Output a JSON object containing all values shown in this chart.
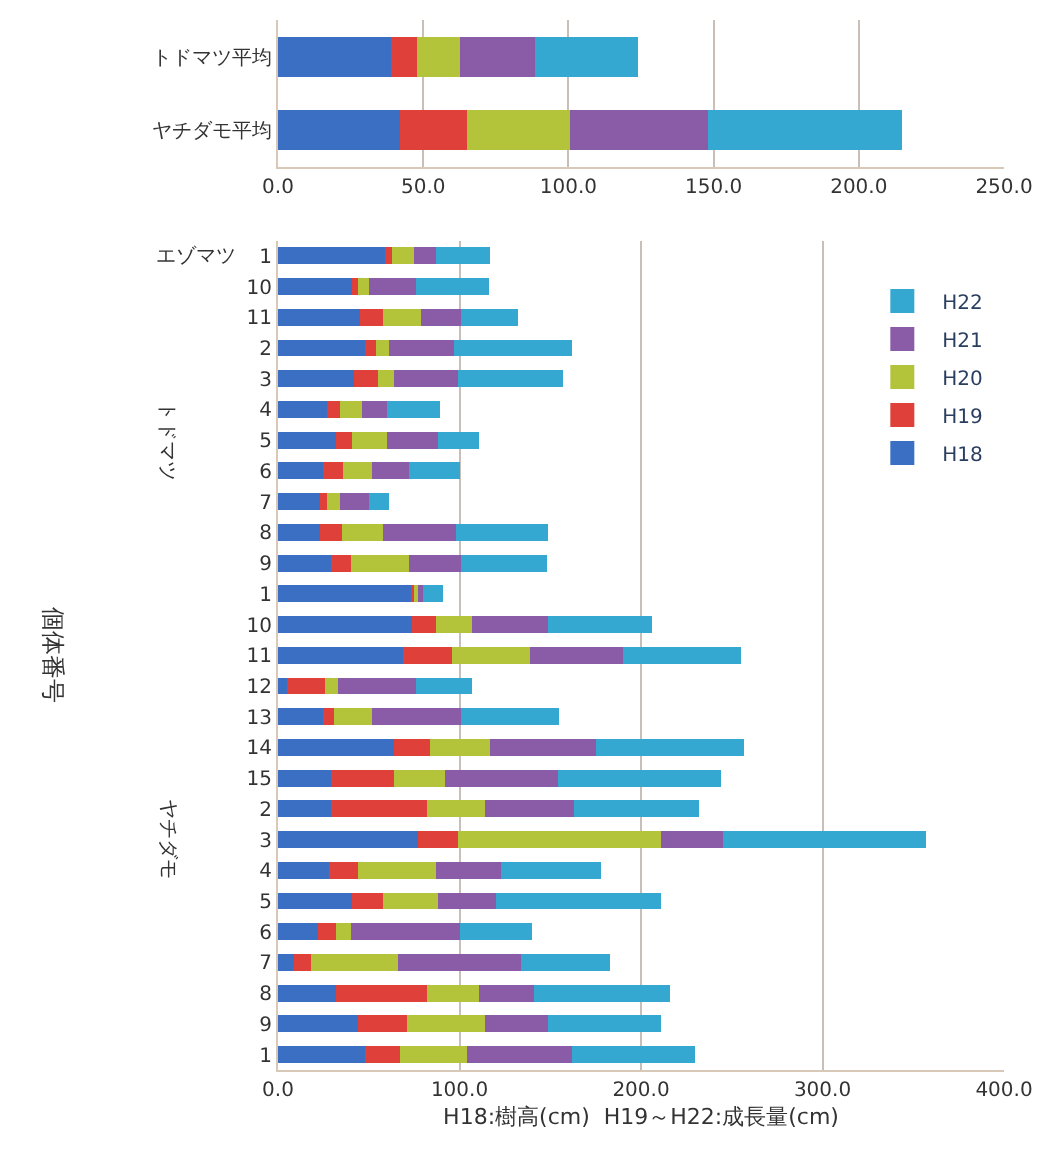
{
  "chart_data": [
    {
      "type": "bar",
      "orientation": "horizontal",
      "stacked": true,
      "categories": [
        "トドマツ平均",
        "ヤチダモ平均"
      ],
      "series": [
        {
          "color": "#3a6fc4",
          "values": [
            39,
            42
          ]
        },
        {
          "color": "#e0403a",
          "values": [
            9,
            23
          ]
        },
        {
          "color": "#b4c43a",
          "values": [
            14.5,
            35.5
          ]
        },
        {
          "color": "#8a5ca8",
          "values": [
            26,
            47.5
          ]
        },
        {
          "color": "#34a8d0",
          "values": [
            35.5,
            67
          ]
        }
      ],
      "xlim": [
        0,
        250
      ],
      "xticks": [
        {
          "value": 0,
          "label": "0.0"
        },
        {
          "value": 50,
          "label": "50.0"
        },
        {
          "value": 100,
          "label": "100.0"
        },
        {
          "value": 150,
          "label": "150.0"
        },
        {
          "value": 200,
          "label": "200.0"
        },
        {
          "value": 250,
          "label": "250.0"
        }
      ],
      "grid": "x"
    },
    {
      "type": "bar",
      "orientation": "horizontal",
      "stacked": true,
      "categories": [
        "1",
        "10",
        "11",
        "2",
        "3",
        "4",
        "5",
        "6",
        "7",
        "8",
        "9",
        "1",
        "10",
        "11",
        "12",
        "13",
        "14",
        "15",
        "2",
        "3",
        "4",
        "5",
        "6",
        "7",
        "8",
        "9",
        "1"
      ],
      "series": [
        {
          "name": "H18",
          "color": "#3a6fc4",
          "values": [
            59,
            41,
            45,
            48,
            42,
            27,
            32,
            25,
            23,
            23,
            29,
            73,
            74,
            69,
            5,
            25,
            64,
            29,
            29,
            77,
            28,
            41,
            22,
            9,
            32,
            44,
            48
          ]
        },
        {
          "name": "H19",
          "color": "#e0403a",
          "values": [
            4,
            3,
            13,
            6,
            13,
            7,
            9,
            11,
            4,
            12,
            11,
            3,
            13,
            27,
            21,
            6,
            20,
            35,
            53,
            22,
            16,
            17,
            10,
            9,
            50,
            27,
            19
          ]
        },
        {
          "name": "H20",
          "color": "#b4c43a",
          "values": [
            12,
            6,
            21,
            7,
            9,
            12,
            19,
            16,
            7,
            23,
            32,
            2,
            20,
            43,
            7,
            21,
            33,
            28,
            32,
            112,
            43,
            30,
            8,
            48,
            29,
            43,
            37
          ]
        },
        {
          "name": "H21",
          "color": "#8a5ca8",
          "values": [
            12,
            26,
            22,
            36,
            35,
            14,
            28,
            20,
            16,
            40,
            29,
            2,
            42,
            51,
            43,
            49,
            58,
            62,
            49,
            34,
            36,
            32,
            60,
            68,
            30,
            35,
            58
          ]
        },
        {
          "name": "H22",
          "color": "#34a8d0",
          "values": [
            30,
            40,
            31,
            65,
            58,
            29,
            23,
            28,
            11,
            51,
            47,
            11,
            57,
            65,
            31,
            54,
            82,
            90,
            69,
            112,
            55,
            91,
            40,
            49,
            75,
            62,
            68
          ]
        }
      ],
      "xlim": [
        0,
        400
      ],
      "xticks": [
        {
          "value": 0,
          "label": "0.0"
        },
        {
          "value": 100,
          "label": "100.0"
        },
        {
          "value": 200,
          "label": "200.0"
        },
        {
          "value": 300,
          "label": "300.0"
        },
        {
          "value": 400,
          "label": "400.0"
        }
      ],
      "xlabel": "H18:樹高(cm)  H19～H22:成長量(cm)",
      "ylabel": "個体番号",
      "annotations": [
        "エゾマツ",
        "トドマツ",
        "ヤチダモ"
      ],
      "grid": "x",
      "legend": "top right"
    }
  ]
}
